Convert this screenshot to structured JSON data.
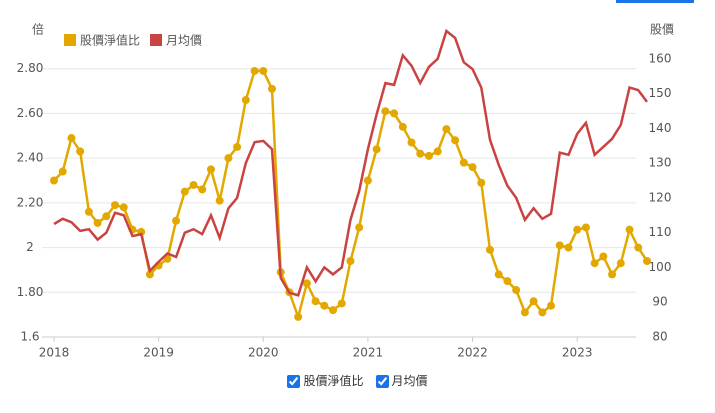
{
  "chart_data": {
    "type": "line",
    "left_axis_label": "倍",
    "right_axis_label": "股價",
    "categories": [
      "2018",
      null,
      null,
      null,
      null,
      null,
      null,
      null,
      null,
      null,
      null,
      null,
      "2019",
      null,
      null,
      null,
      null,
      null,
      null,
      null,
      null,
      null,
      null,
      null,
      "2020",
      null,
      null,
      null,
      null,
      null,
      null,
      null,
      null,
      null,
      null,
      null,
      "2021",
      null,
      null,
      null,
      null,
      null,
      null,
      null,
      null,
      null,
      null,
      null,
      "2022",
      null,
      null,
      null,
      null,
      null,
      null,
      null,
      null,
      null,
      null,
      null,
      "2023",
      null,
      null,
      null,
      null,
      null,
      null,
      null,
      null
    ],
    "ylim": [
      1.6,
      3.0
    ],
    "yticks": [
      1.6,
      {
        "value": 1.8,
        "label": "1.80"
      },
      2,
      {
        "value": 2.2,
        "label": "2.20"
      },
      {
        "value": 2.4,
        "label": "2.40"
      },
      {
        "value": 2.6,
        "label": "2.60"
      },
      {
        "value": 2.8,
        "label": "2.80"
      }
    ],
    "y2lim": [
      80,
      170
    ],
    "y2ticks": [
      80,
      90,
      100,
      110,
      120,
      130,
      140,
      150,
      160
    ],
    "grid": true,
    "legend": "top-left",
    "series": [
      {
        "name": "股價淨值比",
        "color": "#e3a800",
        "markers": true,
        "values": [
          2.3,
          2.34,
          2.49,
          2.43,
          2.16,
          2.11,
          2.14,
          2.19,
          2.18,
          2.08,
          2.07,
          1.88,
          1.92,
          1.95,
          2.12,
          2.25,
          2.28,
          2.26,
          2.35,
          2.21,
          2.4,
          2.45,
          2.66,
          2.79,
          2.79,
          2.71,
          1.89,
          1.8,
          1.69,
          1.84,
          1.76,
          1.74,
          1.72,
          1.75,
          1.94,
          2.09,
          2.3,
          2.44,
          2.61,
          2.6,
          2.54,
          2.47,
          2.42,
          2.41,
          2.43,
          2.53,
          2.48,
          2.38,
          2.36,
          2.29,
          1.99,
          1.88,
          1.85,
          1.81,
          1.71,
          1.76,
          1.71,
          1.74,
          2.01,
          2.0,
          2.08,
          2.09,
          1.93,
          1.96,
          1.88,
          1.93,
          2.08,
          2.0,
          1.94
        ]
      },
      {
        "name": "月均價",
        "color": "#c94343",
        "markers": false,
        "axis": "y2",
        "values": [
          112.5,
          114,
          113,
          110.5,
          111,
          108,
          110,
          115.7,
          115,
          109,
          109.6,
          99,
          101.6,
          104,
          103,
          110,
          111,
          109.6,
          115,
          108.5,
          117,
          120,
          130,
          136,
          136.4,
          134,
          97,
          92.7,
          92,
          100,
          96,
          100,
          98,
          100,
          113.7,
          122,
          134,
          144,
          153,
          152.5,
          161,
          158,
          153,
          157.7,
          160,
          168,
          166,
          159,
          157,
          151.7,
          136.7,
          129.5,
          123.5,
          120,
          113.7,
          117,
          114,
          115.4,
          133,
          132.4,
          138.4,
          141.6,
          132.4,
          134.7,
          137,
          141,
          151.7,
          151,
          147.6
        ]
      }
    ]
  }
}
